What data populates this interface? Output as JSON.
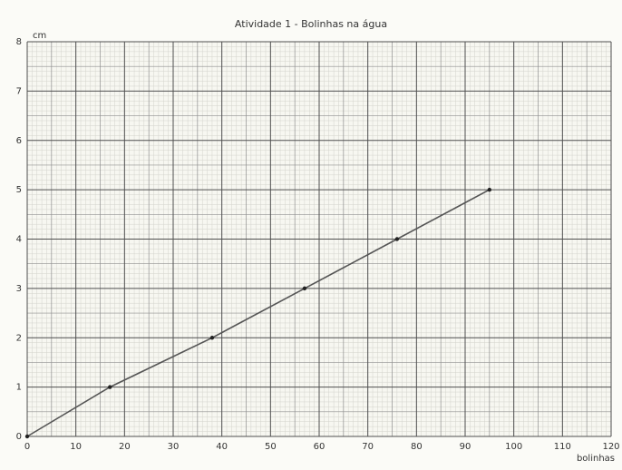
{
  "chart_data": {
    "type": "line",
    "title": "Atividade 1 - Bolinhas na água",
    "xlabel": "bolinhas",
    "ylabel": "cm",
    "xlim": [
      0,
      120
    ],
    "ylim": [
      0,
      8
    ],
    "x_ticks": [
      0,
      10,
      20,
      30,
      40,
      50,
      60,
      70,
      80,
      90,
      100,
      110,
      120
    ],
    "y_ticks": [
      0,
      1,
      2,
      3,
      4,
      5,
      6,
      7,
      8
    ],
    "grid": true,
    "series": [
      {
        "x": [
          0,
          17,
          38,
          57,
          76,
          95
        ],
        "y": [
          0,
          1,
          2,
          3,
          4,
          5
        ]
      }
    ],
    "colors": {
      "background": "#fbfbf7",
      "grid_major": "#4f4f4f",
      "grid_mid": "#8f8f8f",
      "grid_minor": "#d3d3cc",
      "line": "#555555",
      "point": "#222222"
    }
  }
}
